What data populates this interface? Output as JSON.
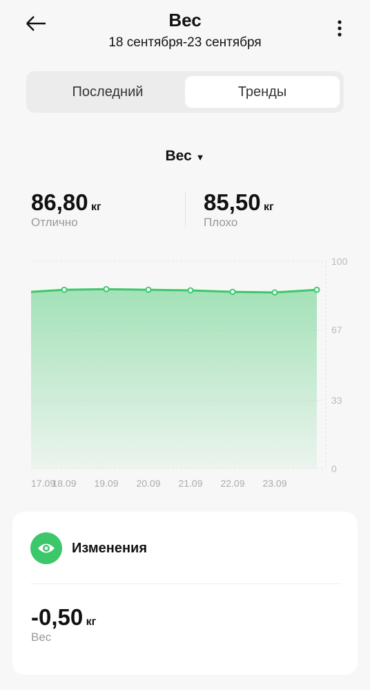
{
  "header": {
    "title": "Вес",
    "subtitle": "18 сентября-23 сентября"
  },
  "tabs": [
    "Последний",
    "Тренды"
  ],
  "metric_selector": "Вес",
  "stats": [
    {
      "value": "86,80",
      "unit": "кг",
      "label": "Отлично"
    },
    {
      "value": "85,50",
      "unit": "кг",
      "label": "Плохо"
    }
  ],
  "chart_data": {
    "type": "area",
    "categories": [
      "17.09",
      "18.09",
      "19.09",
      "20.09",
      "21.09",
      "22.09",
      "23.09",
      null
    ],
    "series": [
      {
        "color": "#3cc76a",
        "values": [
          85.3,
          86.3,
          86.6,
          86.3,
          86.0,
          85.3,
          85.0,
          86.3
        ]
      }
    ],
    "ylim": [
      0,
      100
    ],
    "yticks": [
      0,
      33,
      67,
      100
    ]
  },
  "changes": {
    "title": "Изменения",
    "value": "-0,50",
    "unit": "кг",
    "label": "Вес"
  }
}
